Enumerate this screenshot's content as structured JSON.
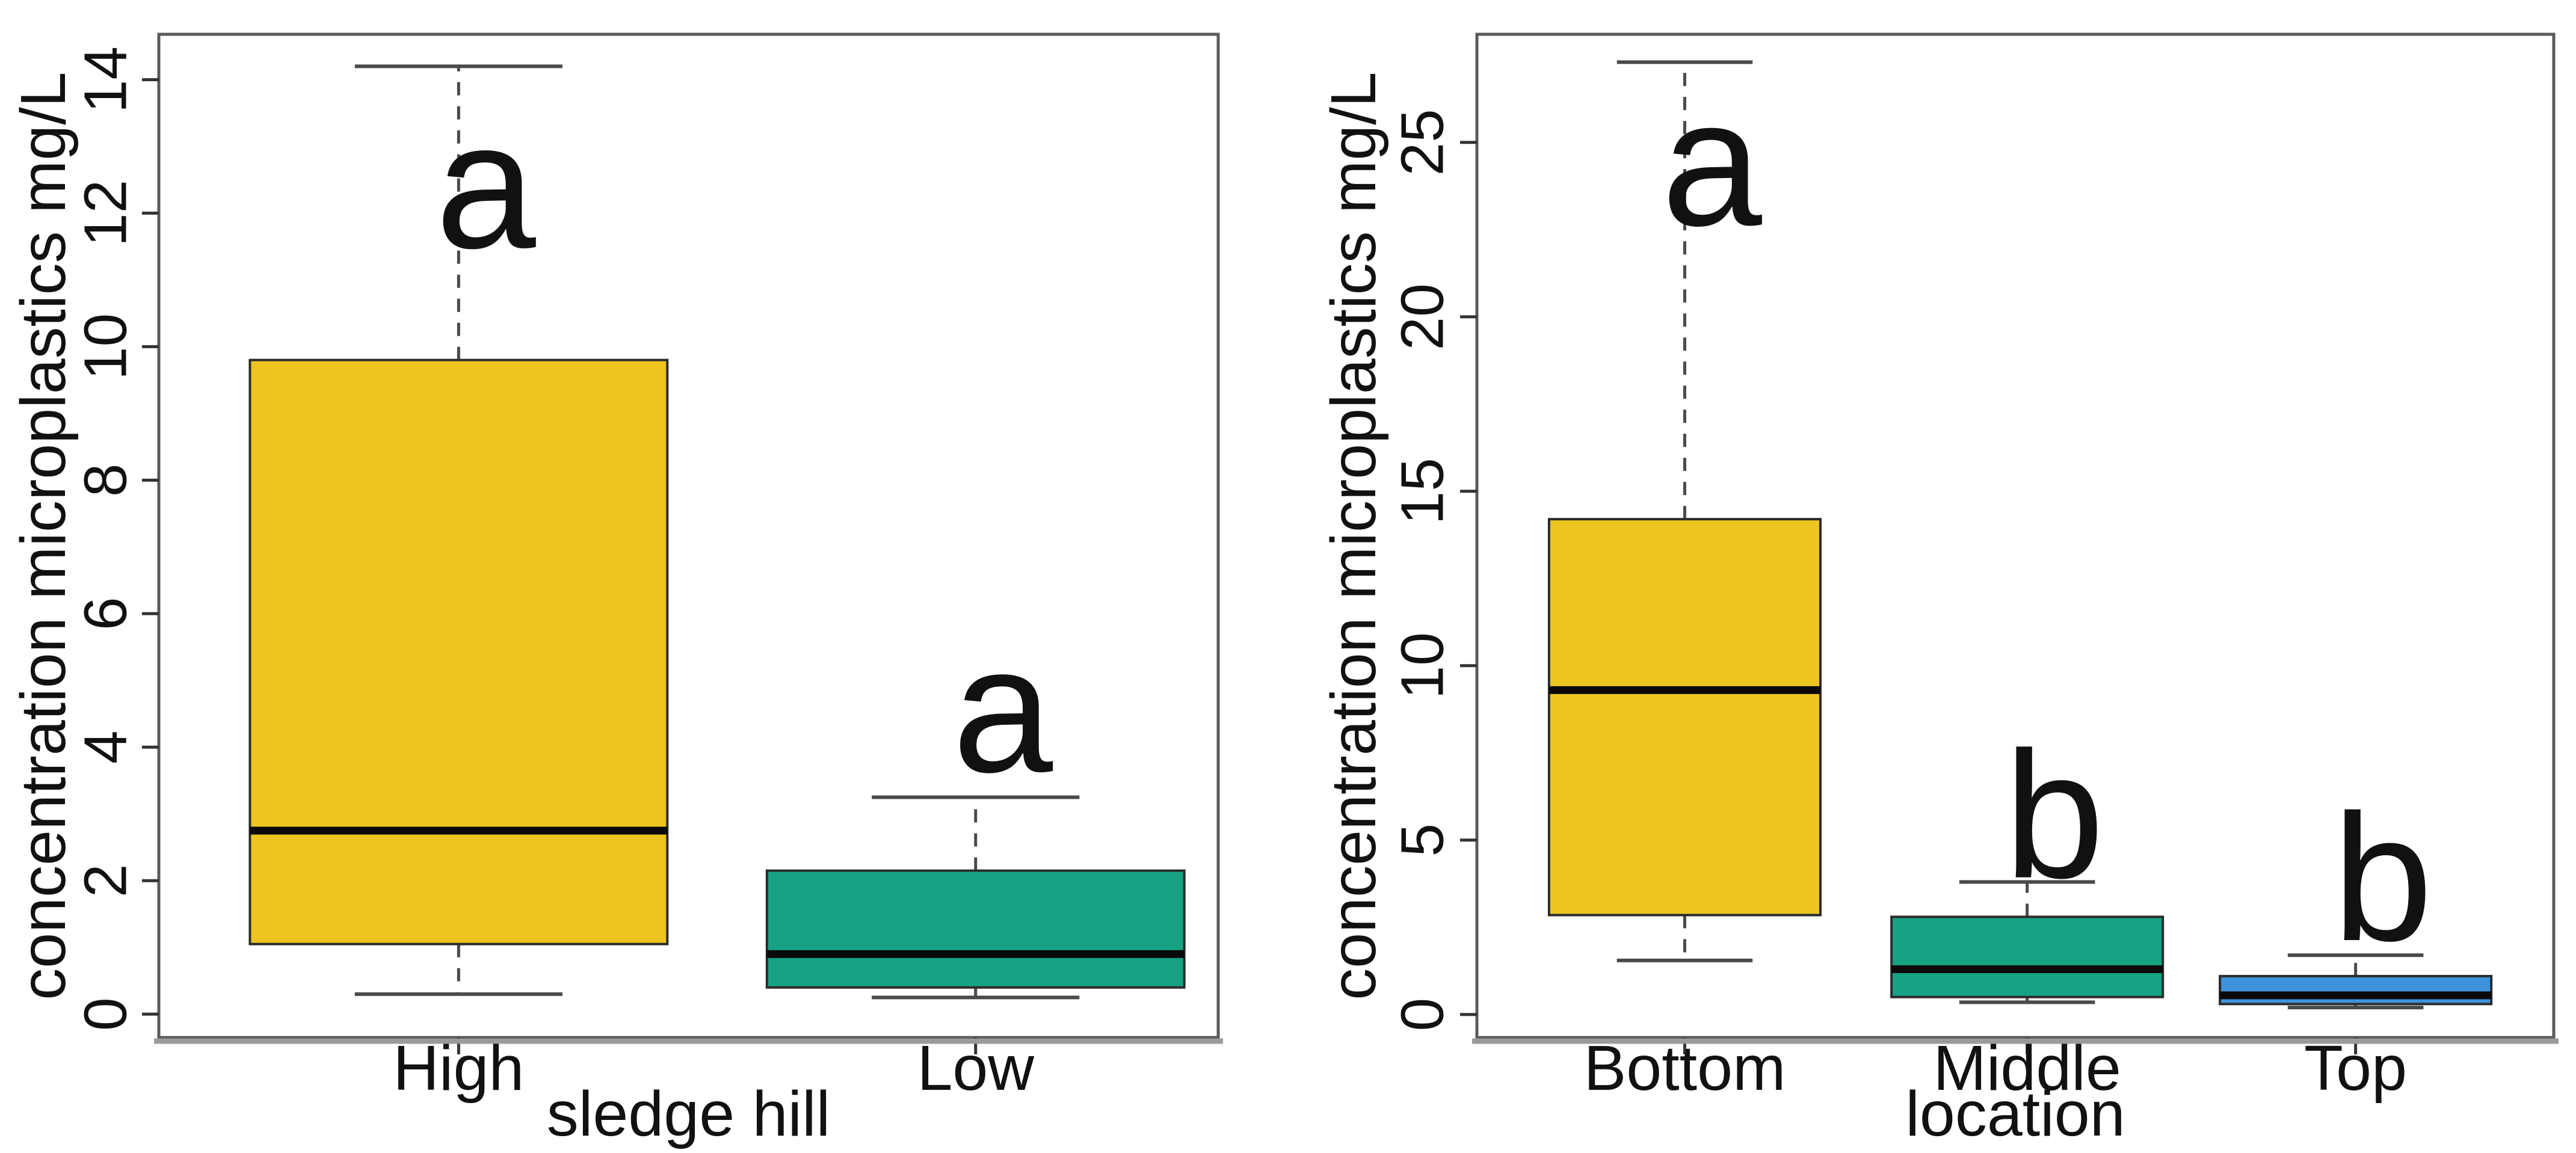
{
  "figure": {
    "background": "#ffffff",
    "description_labels": {
      "left_panel": "sledge hill boxplot",
      "right_panel": "location boxplot"
    }
  },
  "colors": {
    "gold": "#EDC51F",
    "teal": "#17A283",
    "blue": "#3E92DB",
    "axis": "#5a5a5a",
    "baseline": "#9a9a9a",
    "whisker": "#4a4a4a",
    "box_stroke": "#2b2b2b",
    "median": "#0a0a0a",
    "text": "#111111"
  },
  "chart_data": [
    {
      "type": "boxplot",
      "title": "",
      "xlabel": "sledge hill",
      "ylabel": "concentration microplastics  mg/L",
      "ylim": [
        -0.35,
        14.68
      ],
      "yticks": [
        0,
        2,
        4,
        6,
        8,
        10,
        12,
        14
      ],
      "grid": false,
      "legend": "none",
      "categories": [
        "High",
        "Low"
      ],
      "series": [
        {
          "category": "High",
          "color": "#EDC51F",
          "whisker_low": 0.3,
          "q1": 1.05,
          "median": 2.75,
          "q3": 9.8,
          "whisker_high": 14.2,
          "sig_label": "a",
          "sig_label_y": 12.2
        },
        {
          "category": "Low",
          "color": "#17A283",
          "whisker_low": 0.25,
          "q1": 0.4,
          "median": 0.9,
          "q3": 2.15,
          "whisker_high": 3.25,
          "sig_label": "a",
          "sig_label_y": 4.35
        }
      ]
    },
    {
      "type": "boxplot",
      "title": "",
      "xlabel": "location",
      "ylabel": "concentration microplastics  mg/L",
      "ylim": [
        -0.66,
        28.1
      ],
      "yticks": [
        0,
        5,
        10,
        15,
        20,
        25
      ],
      "grid": false,
      "legend": "none",
      "categories": [
        "Bottom",
        "Middle",
        "Top"
      ],
      "series": [
        {
          "category": "Bottom",
          "color": "#EDC51F",
          "whisker_low": 1.55,
          "q1": 2.85,
          "median": 9.3,
          "q3": 14.2,
          "whisker_high": 27.3,
          "sig_label": "a",
          "sig_label_y": 24.0
        },
        {
          "category": "Middle",
          "color": "#17A283",
          "whisker_low": 0.35,
          "q1": 0.5,
          "median": 1.3,
          "q3": 2.8,
          "whisker_high": 3.8,
          "sig_label": "b",
          "sig_label_y": 5.3
        },
        {
          "category": "Top",
          "color": "#3E92DB",
          "whisker_low": 0.2,
          "q1": 0.3,
          "median": 0.55,
          "q3": 1.1,
          "whisker_high": 1.7,
          "sig_label": "b",
          "sig_label_y": 3.5
        }
      ]
    }
  ]
}
